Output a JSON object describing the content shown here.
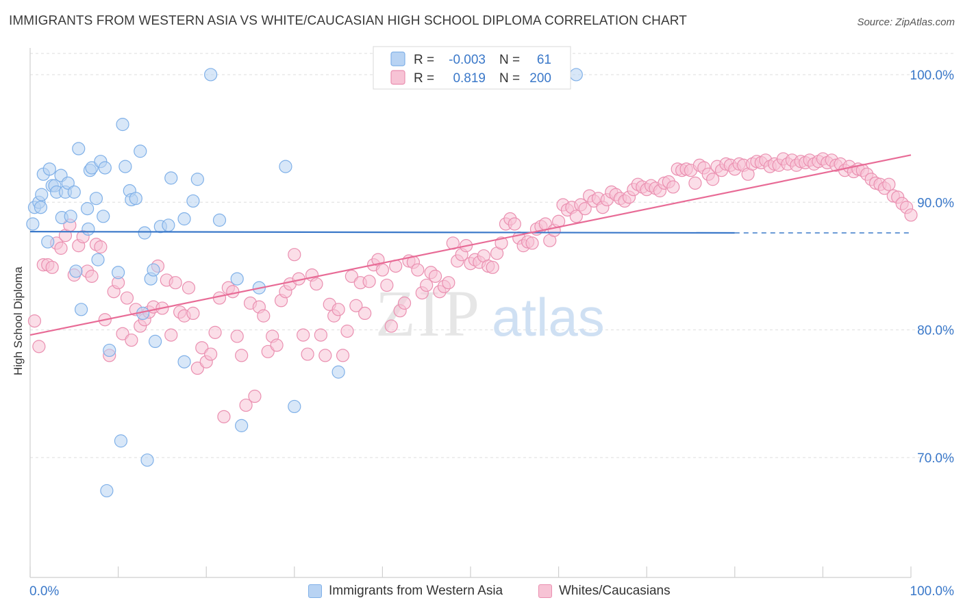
{
  "header": {
    "title": "IMMIGRANTS FROM WESTERN ASIA VS WHITE/CAUCASIAN HIGH SCHOOL DIPLOMA CORRELATION CHART",
    "source": "Source: ZipAtlas.com"
  },
  "watermark": {
    "zip": "ZIP",
    "atlas": "atlas"
  },
  "legend_top": {
    "rows": [
      {
        "r_label": "R =",
        "r_value": "-0.003",
        "n_label": "N =",
        "n_value": "61"
      },
      {
        "r_label": "R =",
        "r_value": "0.819",
        "n_label": "N =",
        "n_value": "200"
      }
    ]
  },
  "colors": {
    "blue": "#7fb0e8",
    "blue_fill": "#b8d3f3",
    "blue_line": "#3a78c9",
    "pink": "#ea8fb0",
    "pink_fill": "#f7c3d5",
    "pink_line": "#e86b96",
    "axis_label": "#3a78c9",
    "grid": "#dddddd"
  },
  "chart_data": {
    "type": "scatter",
    "title": "IMMIGRANTS FROM WESTERN ASIA VS WHITE/CAUCASIAN HIGH SCHOOL DIPLOMA CORRELATION CHART",
    "xlabel": "",
    "ylabel": "High School Diploma",
    "xlim": [
      0,
      100
    ],
    "ylim": [
      60.5,
      101.5
    ],
    "x_tick_labels": [
      "0.0%",
      "100.0%"
    ],
    "y_ticks": [
      70,
      80,
      90,
      100
    ],
    "y_tick_labels": [
      "70.0%",
      "80.0%",
      "90.0%",
      "100.0%"
    ],
    "grid": true,
    "legend_position": "top-center",
    "series": [
      {
        "name": "Immigrants from Western Asia",
        "r": -0.003,
        "n": 61,
        "trend": {
          "x0": 0,
          "y0": 87.7,
          "x1": 80,
          "y1": 87.6,
          "dashed_to": 100
        },
        "points": [
          [
            0.3,
            88.3
          ],
          [
            0.5,
            89.6
          ],
          [
            1.0,
            90.0
          ],
          [
            1.2,
            89.6
          ],
          [
            1.3,
            90.6
          ],
          [
            1.5,
            92.2
          ],
          [
            2.0,
            86.9
          ],
          [
            2.2,
            92.6
          ],
          [
            2.5,
            91.3
          ],
          [
            2.8,
            91.3
          ],
          [
            3.0,
            90.8
          ],
          [
            3.5,
            92.1
          ],
          [
            3.6,
            88.8
          ],
          [
            4.0,
            90.8
          ],
          [
            4.3,
            91.5
          ],
          [
            4.6,
            88.9
          ],
          [
            5.0,
            90.8
          ],
          [
            5.2,
            84.6
          ],
          [
            5.5,
            94.2
          ],
          [
            5.8,
            81.6
          ],
          [
            6.5,
            89.5
          ],
          [
            6.6,
            87.9
          ],
          [
            6.8,
            92.5
          ],
          [
            7.0,
            92.7
          ],
          [
            7.5,
            90.3
          ],
          [
            7.7,
            85.5
          ],
          [
            8.0,
            93.2
          ],
          [
            8.3,
            88.9
          ],
          [
            8.5,
            92.7
          ],
          [
            8.7,
            67.4
          ],
          [
            9.0,
            78.4
          ],
          [
            10.0,
            84.5
          ],
          [
            10.3,
            71.3
          ],
          [
            10.5,
            96.1
          ],
          [
            10.8,
            92.8
          ],
          [
            11.3,
            90.9
          ],
          [
            11.5,
            90.2
          ],
          [
            12.0,
            90.3
          ],
          [
            12.5,
            94.0
          ],
          [
            12.8,
            81.3
          ],
          [
            13.0,
            87.6
          ],
          [
            13.3,
            69.8
          ],
          [
            13.7,
            84.0
          ],
          [
            14.0,
            84.7
          ],
          [
            14.2,
            79.1
          ],
          [
            14.8,
            88.1
          ],
          [
            15.7,
            88.2
          ],
          [
            16.0,
            91.9
          ],
          [
            17.5,
            88.7
          ],
          [
            17.5,
            77.5
          ],
          [
            18.5,
            90.1
          ],
          [
            19.0,
            91.8
          ],
          [
            20.5,
            100.0
          ],
          [
            21.5,
            88.6
          ],
          [
            23.5,
            84.0
          ],
          [
            24.0,
            72.5
          ],
          [
            26.0,
            83.3
          ],
          [
            29.0,
            92.8
          ],
          [
            30.0,
            74.0
          ],
          [
            35.0,
            76.7
          ],
          [
            62.0,
            100.0
          ]
        ]
      },
      {
        "name": "Whites/Caucasians",
        "r": 0.819,
        "n": 200,
        "trend": {
          "x0": 0,
          "y0": 79.6,
          "x1": 100,
          "y1": 93.7
        },
        "points": [
          [
            0.5,
            80.7
          ],
          [
            1.0,
            78.7
          ],
          [
            1.5,
            85.1
          ],
          [
            2.0,
            85.1
          ],
          [
            2.5,
            84.9
          ],
          [
            3.0,
            86.8
          ],
          [
            3.5,
            86.4
          ],
          [
            4.0,
            87.4
          ],
          [
            4.5,
            88.2
          ],
          [
            5.0,
            84.3
          ],
          [
            5.5,
            86.6
          ],
          [
            6.0,
            87.3
          ],
          [
            6.5,
            84.6
          ],
          [
            7.0,
            84.2
          ],
          [
            7.5,
            86.7
          ],
          [
            8.0,
            86.5
          ],
          [
            8.5,
            80.8
          ],
          [
            9.0,
            78.0
          ],
          [
            9.5,
            83.0
          ],
          [
            10.0,
            83.7
          ],
          [
            10.5,
            79.7
          ],
          [
            11.0,
            82.5
          ],
          [
            11.5,
            79.2
          ],
          [
            12.0,
            81.6
          ],
          [
            12.5,
            80.3
          ],
          [
            13.0,
            80.8
          ],
          [
            13.5,
            81.4
          ],
          [
            14.0,
            81.8
          ],
          [
            14.5,
            85.0
          ],
          [
            15.0,
            81.7
          ],
          [
            15.5,
            83.9
          ],
          [
            16.0,
            79.6
          ],
          [
            16.5,
            83.7
          ],
          [
            17.0,
            81.4
          ],
          [
            17.5,
            81.1
          ],
          [
            18.0,
            83.3
          ],
          [
            18.5,
            81.3
          ],
          [
            19.0,
            77.0
          ],
          [
            19.5,
            78.6
          ],
          [
            20.0,
            77.5
          ],
          [
            20.5,
            78.1
          ],
          [
            21.0,
            79.8
          ],
          [
            21.5,
            82.5
          ],
          [
            22.0,
            73.2
          ],
          [
            22.5,
            83.3
          ],
          [
            23.0,
            83.0
          ],
          [
            23.5,
            79.5
          ],
          [
            24.0,
            78.0
          ],
          [
            24.5,
            74.1
          ],
          [
            25.0,
            82.1
          ],
          [
            25.5,
            74.8
          ],
          [
            26.0,
            81.8
          ],
          [
            26.5,
            81.1
          ],
          [
            27.0,
            78.3
          ],
          [
            27.5,
            79.5
          ],
          [
            28.0,
            78.8
          ],
          [
            28.5,
            82.3
          ],
          [
            29.0,
            83.0
          ],
          [
            29.5,
            83.6
          ],
          [
            30.0,
            85.9
          ],
          [
            30.5,
            84.0
          ],
          [
            31.0,
            79.6
          ],
          [
            31.5,
            78.1
          ],
          [
            32.0,
            84.3
          ],
          [
            32.5,
            83.6
          ],
          [
            33.0,
            79.6
          ],
          [
            33.5,
            78.0
          ],
          [
            34.0,
            82.0
          ],
          [
            34.5,
            81.1
          ],
          [
            35.0,
            81.6
          ],
          [
            35.5,
            78.0
          ],
          [
            36.0,
            79.9
          ],
          [
            36.5,
            84.2
          ],
          [
            37.0,
            81.9
          ],
          [
            37.5,
            83.7
          ],
          [
            38.0,
            81.3
          ],
          [
            38.5,
            83.8
          ],
          [
            39.0,
            85.1
          ],
          [
            39.5,
            85.5
          ],
          [
            40.0,
            84.7
          ],
          [
            40.5,
            83.5
          ],
          [
            41.0,
            80.3
          ],
          [
            41.5,
            85.0
          ],
          [
            42.0,
            81.5
          ],
          [
            42.5,
            82.1
          ],
          [
            43.0,
            85.4
          ],
          [
            43.5,
            85.3
          ],
          [
            44.0,
            84.7
          ],
          [
            44.5,
            82.9
          ],
          [
            45.0,
            83.5
          ],
          [
            45.5,
            84.5
          ],
          [
            46.0,
            84.2
          ],
          [
            46.5,
            83.0
          ],
          [
            47.0,
            83.4
          ],
          [
            47.5,
            83.7
          ],
          [
            48.0,
            86.8
          ],
          [
            48.5,
            85.4
          ],
          [
            49.0,
            85.9
          ],
          [
            49.5,
            86.6
          ],
          [
            50.0,
            85.2
          ],
          [
            50.5,
            85.5
          ],
          [
            51.0,
            85.3
          ],
          [
            51.5,
            85.8
          ],
          [
            52.0,
            85.0
          ],
          [
            52.5,
            84.9
          ],
          [
            53.0,
            86.0
          ],
          [
            53.5,
            86.8
          ],
          [
            54.0,
            88.3
          ],
          [
            54.5,
            88.7
          ],
          [
            55.0,
            88.3
          ],
          [
            55.5,
            87.2
          ],
          [
            56.0,
            86.6
          ],
          [
            56.5,
            86.9
          ],
          [
            57.0,
            86.8
          ],
          [
            57.5,
            87.9
          ],
          [
            58.0,
            88.1
          ],
          [
            58.5,
            88.3
          ],
          [
            59.0,
            87.0
          ],
          [
            59.5,
            87.8
          ],
          [
            60.0,
            88.5
          ],
          [
            60.5,
            89.8
          ],
          [
            61.0,
            89.4
          ],
          [
            61.5,
            89.6
          ],
          [
            62.0,
            88.9
          ],
          [
            62.5,
            89.8
          ],
          [
            63.0,
            89.5
          ],
          [
            63.5,
            90.5
          ],
          [
            64.0,
            90.1
          ],
          [
            64.5,
            90.3
          ],
          [
            65.0,
            89.6
          ],
          [
            65.5,
            90.2
          ],
          [
            66.0,
            90.8
          ],
          [
            66.5,
            90.6
          ],
          [
            67.0,
            90.3
          ],
          [
            67.5,
            90.1
          ],
          [
            68.0,
            90.4
          ],
          [
            68.5,
            91.0
          ],
          [
            69.0,
            91.4
          ],
          [
            69.5,
            91.2
          ],
          [
            70.0,
            91.0
          ],
          [
            70.5,
            91.3
          ],
          [
            71.0,
            91.1
          ],
          [
            71.5,
            90.9
          ],
          [
            72.0,
            91.5
          ],
          [
            72.5,
            91.6
          ],
          [
            73.0,
            91.2
          ],
          [
            73.5,
            92.6
          ],
          [
            74.0,
            92.5
          ],
          [
            74.5,
            92.6
          ],
          [
            75.0,
            92.5
          ],
          [
            75.5,
            91.5
          ],
          [
            76.0,
            92.9
          ],
          [
            76.5,
            92.7
          ],
          [
            77.0,
            92.2
          ],
          [
            77.5,
            91.8
          ],
          [
            78.0,
            92.8
          ],
          [
            78.5,
            92.5
          ],
          [
            79.0,
            93.0
          ],
          [
            79.5,
            92.9
          ],
          [
            80.0,
            92.6
          ],
          [
            80.5,
            93.0
          ],
          [
            81.0,
            92.9
          ],
          [
            81.5,
            92.2
          ],
          [
            82.0,
            93.0
          ],
          [
            82.5,
            93.2
          ],
          [
            83.0,
            93.1
          ],
          [
            83.5,
            93.3
          ],
          [
            84.0,
            92.8
          ],
          [
            84.5,
            93.0
          ],
          [
            85.0,
            92.9
          ],
          [
            85.5,
            93.4
          ],
          [
            86.0,
            93.0
          ],
          [
            86.5,
            93.3
          ],
          [
            87.0,
            92.9
          ],
          [
            87.5,
            93.2
          ],
          [
            88.0,
            93.1
          ],
          [
            88.5,
            93.3
          ],
          [
            89.0,
            93.0
          ],
          [
            89.5,
            93.2
          ],
          [
            90.0,
            93.4
          ],
          [
            90.5,
            93.1
          ],
          [
            91.0,
            93.3
          ],
          [
            91.5,
            92.9
          ],
          [
            92.0,
            93.0
          ],
          [
            92.5,
            92.5
          ],
          [
            93.0,
            92.8
          ],
          [
            93.5,
            92.4
          ],
          [
            94.0,
            92.6
          ],
          [
            94.5,
            92.5
          ],
          [
            95.0,
            92.2
          ],
          [
            95.5,
            91.8
          ],
          [
            96.0,
            91.5
          ],
          [
            96.5,
            91.4
          ],
          [
            97.0,
            91.1
          ],
          [
            97.5,
            91.4
          ],
          [
            98.0,
            90.5
          ],
          [
            98.5,
            90.4
          ],
          [
            99.0,
            89.9
          ],
          [
            99.5,
            89.6
          ],
          [
            100.0,
            89.0
          ]
        ]
      }
    ]
  },
  "legend_bottom": {
    "items": [
      {
        "label": "Immigrants from Western Asia"
      },
      {
        "label": "Whites/Caucasians"
      }
    ]
  }
}
